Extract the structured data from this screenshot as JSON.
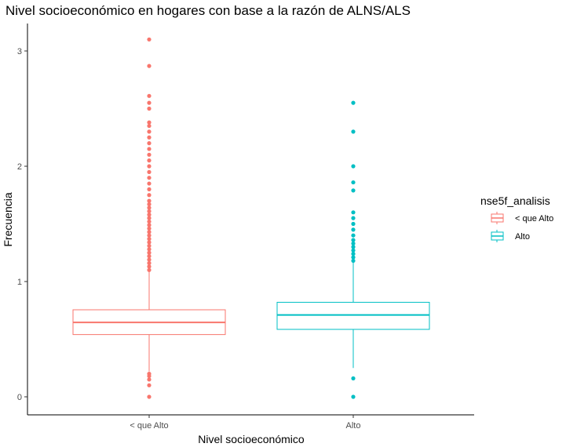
{
  "chart_data": {
    "type": "boxplot",
    "title": "Nivel socioeconómico en hogares con base a la razón de ALNS/ALS",
    "xlabel": "Nivel socioeconómico",
    "ylabel": "Frecuencia",
    "ylim": [
      -0.12,
      3.2
    ],
    "yticks": [
      0,
      1,
      2,
      3
    ],
    "grid": false,
    "legend": {
      "title": "nse5f_analisis",
      "placement": "right",
      "entries": [
        "< que Alto",
        "Alto"
      ]
    },
    "categories": [
      "< que Alto",
      "Alto"
    ],
    "series": [
      {
        "name": "< que Alto",
        "color": "#F8766D",
        "whisker_low": 0.22,
        "q1": 0.54,
        "median": 0.645,
        "q3": 0.755,
        "whisker_high": 1.09,
        "outliers": [
          0.0,
          0.1,
          0.15,
          0.18,
          0.2,
          1.1,
          1.13,
          1.16,
          1.19,
          1.22,
          1.25,
          1.28,
          1.31,
          1.34,
          1.37,
          1.4,
          1.43,
          1.46,
          1.49,
          1.52,
          1.55,
          1.58,
          1.61,
          1.64,
          1.67,
          1.7,
          1.75,
          1.8,
          1.85,
          1.9,
          1.95,
          2.0,
          2.05,
          2.1,
          2.15,
          2.2,
          2.25,
          2.3,
          2.35,
          2.38,
          2.5,
          2.55,
          2.61,
          2.87,
          3.1
        ]
      },
      {
        "name": "Alto",
        "color": "#00BFC4",
        "whisker_low": 0.25,
        "q1": 0.585,
        "median": 0.71,
        "q3": 0.82,
        "whisker_high": 1.17,
        "outliers": [
          0.0,
          0.16,
          1.18,
          1.21,
          1.24,
          1.27,
          1.3,
          1.33,
          1.36,
          1.4,
          1.45,
          1.5,
          1.55,
          1.6,
          1.79,
          1.86,
          2.0,
          2.3,
          2.55
        ]
      }
    ]
  }
}
